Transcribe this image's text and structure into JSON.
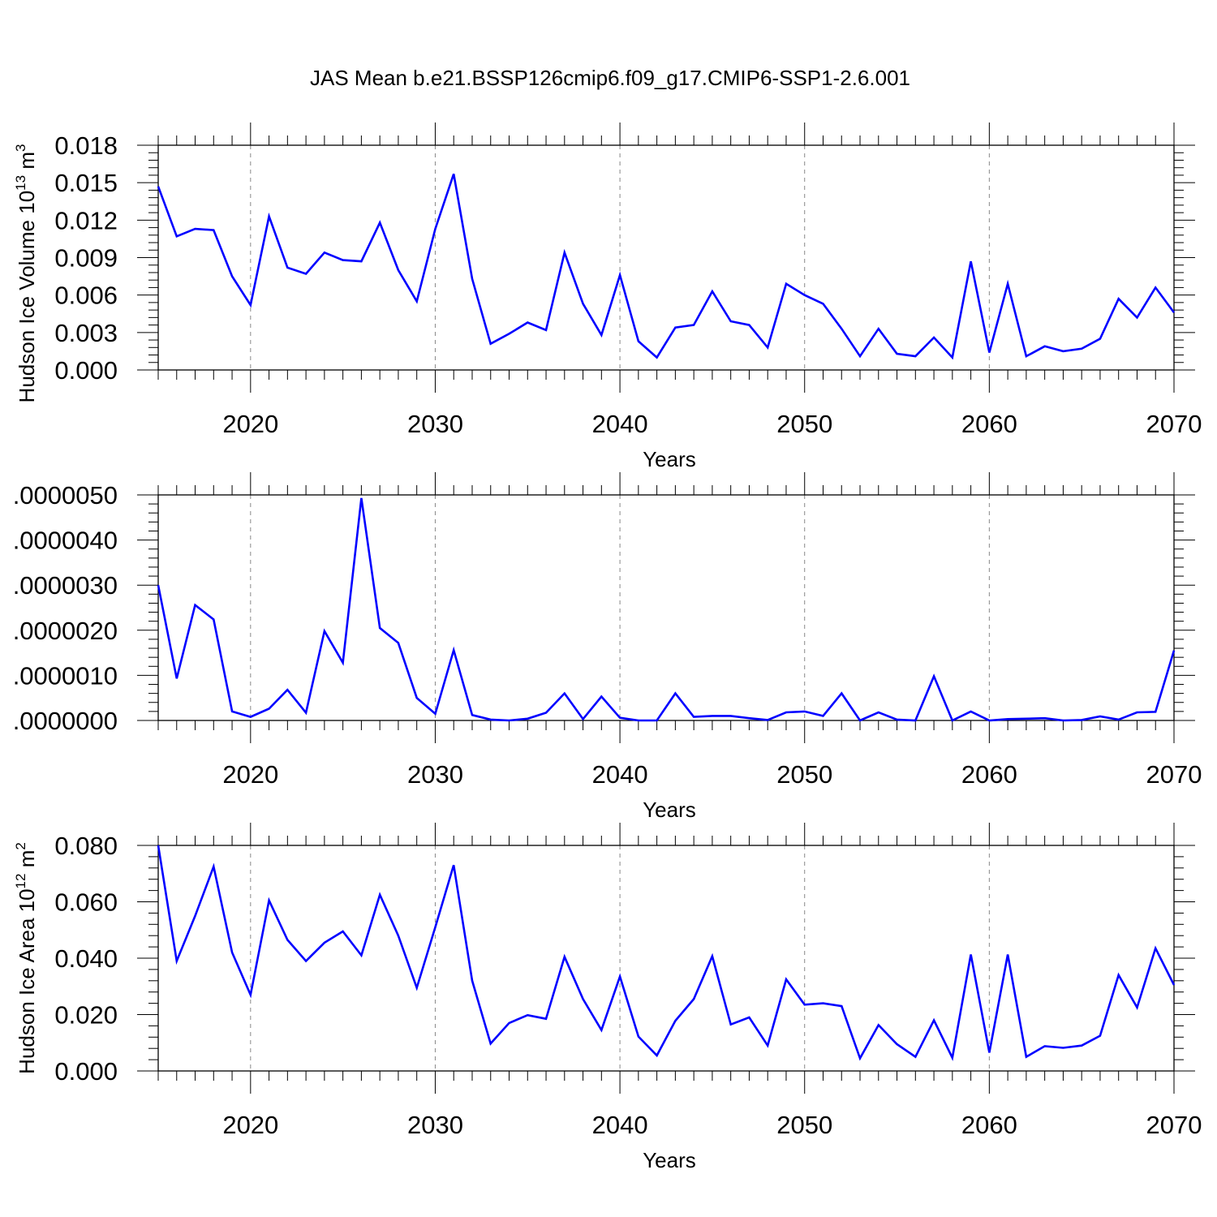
{
  "title": "JAS Mean b.e21.BSSP126cmip6.f09_g17.CMIP6-SSP1-2.6.001",
  "colors": {
    "line": "#0000ff",
    "axis": "#000000",
    "grid": "#888888",
    "background": "#ffffff"
  },
  "chart_data": [
    {
      "type": "line",
      "xlabel": "Years",
      "ylabel": {
        "text": "Hudson Ice Volume 10",
        "exponent": "13",
        "unit": " m",
        "unit_exponent": "3"
      },
      "xlim": [
        2015,
        2070
      ],
      "ylim": [
        0,
        0.018
      ],
      "x_ticks": [
        "2020",
        "2030",
        "2040",
        "2050",
        "2060",
        "2070"
      ],
      "y_ticks": [
        "0.000",
        "0.003",
        "0.006",
        "0.009",
        "0.012",
        "0.015",
        "0.018"
      ],
      "grid": "vertical dashed at major x ticks",
      "x": [
        2015,
        2016,
        2017,
        2018,
        2019,
        2020,
        2021,
        2022,
        2023,
        2024,
        2025,
        2026,
        2027,
        2028,
        2029,
        2030,
        2031,
        2032,
        2033,
        2034,
        2035,
        2036,
        2037,
        2038,
        2039,
        2040,
        2041,
        2042,
        2043,
        2044,
        2045,
        2046,
        2047,
        2048,
        2049,
        2050,
        2051,
        2052,
        2053,
        2054,
        2055,
        2056,
        2057,
        2058,
        2059,
        2060,
        2061,
        2062,
        2063,
        2064,
        2065,
        2066,
        2067,
        2068,
        2069,
        2070
      ],
      "series": [
        {
          "values": [
            0.0147,
            0.0107,
            0.0113,
            0.0112,
            0.0075,
            0.0052,
            0.0123,
            0.0082,
            0.0077,
            0.0094,
            0.0088,
            0.0087,
            0.0118,
            0.008,
            0.0055,
            0.0113,
            0.0157,
            0.0073,
            0.0021,
            0.0029,
            0.0038,
            0.0032,
            0.0094,
            0.0053,
            0.0028,
            0.0076,
            0.0023,
            0.001,
            0.0034,
            0.0036,
            0.0063,
            0.0039,
            0.0036,
            0.0018,
            0.0069,
            0.006,
            0.0053,
            0.0033,
            0.0011,
            0.0033,
            0.0013,
            0.0011,
            0.0026,
            0.001,
            0.0087,
            0.0014,
            0.0069,
            0.0011,
            0.0019,
            0.0015,
            0.0017,
            0.0025,
            0.0057,
            0.0042,
            0.0066,
            0.0046
          ]
        }
      ]
    },
    {
      "type": "line",
      "xlabel": "Years",
      "ylabel": null,
      "xlim": [
        2015,
        2070
      ],
      "ylim": [
        0,
        5e-06
      ],
      "x_ticks": [
        "2020",
        "2030",
        "2040",
        "2050",
        "2060",
        "2070"
      ],
      "y_ticks": [
        ".0000000",
        ".0000010",
        ".0000020",
        ".0000030",
        ".0000040",
        ".0000050"
      ],
      "grid": "vertical dashed at major x ticks",
      "x": [
        2015,
        2016,
        2017,
        2018,
        2019,
        2020,
        2021,
        2022,
        2023,
        2024,
        2025,
        2026,
        2027,
        2028,
        2029,
        2030,
        2031,
        2032,
        2033,
        2034,
        2035,
        2036,
        2037,
        2038,
        2039,
        2040,
        2041,
        2042,
        2043,
        2044,
        2045,
        2046,
        2047,
        2048,
        2049,
        2050,
        2051,
        2052,
        2053,
        2054,
        2055,
        2056,
        2057,
        2058,
        2059,
        2060,
        2061,
        2062,
        2063,
        2064,
        2065,
        2066,
        2067,
        2068,
        2069,
        2070
      ],
      "series": [
        {
          "values": [
            3e-06,
            9.3e-07,
            2.56e-06,
            2.24e-06,
            2e-07,
            8e-08,
            2.6e-07,
            6.8e-07,
            1.7e-07,
            1.98e-06,
            1.28e-06,
            4.93e-06,
            2.05e-06,
            1.72e-06,
            5e-07,
            1.5e-07,
            1.56e-06,
            1.2e-07,
            2e-08,
            0.0,
            4e-08,
            1.7e-07,
            6e-07,
            3e-08,
            5.3e-07,
            6e-08,
            0.0,
            0.0,
            6e-07,
            8e-08,
            1e-07,
            1e-07,
            5e-08,
            1e-08,
            1.8e-07,
            2e-07,
            1e-07,
            6e-07,
            0.0,
            1.8e-07,
            2e-08,
            0.0,
            9.8e-07,
            0.0,
            2e-07,
            0.0,
            3e-08,
            4e-08,
            5e-08,
            0.0,
            1e-08,
            9e-08,
            2e-08,
            1.8e-07,
            1.9e-07,
            1.55e-06
          ]
        }
      ]
    },
    {
      "type": "line",
      "xlabel": "Years",
      "ylabel": {
        "text": "Hudson Ice Area 10",
        "exponent": "12",
        "unit": " m",
        "unit_exponent": "2"
      },
      "xlim": [
        2015,
        2070
      ],
      "ylim": [
        0,
        0.08
      ],
      "x_ticks": [
        "2020",
        "2030",
        "2040",
        "2050",
        "2060",
        "2070"
      ],
      "y_ticks": [
        "0.000",
        "0.020",
        "0.040",
        "0.060",
        "0.080"
      ],
      "grid": "vertical dashed at major x ticks",
      "x": [
        2015,
        2016,
        2017,
        2018,
        2019,
        2020,
        2021,
        2022,
        2023,
        2024,
        2025,
        2026,
        2027,
        2028,
        2029,
        2030,
        2031,
        2032,
        2033,
        2034,
        2035,
        2036,
        2037,
        2038,
        2039,
        2040,
        2041,
        2042,
        2043,
        2044,
        2045,
        2046,
        2047,
        2048,
        2049,
        2050,
        2051,
        2052,
        2053,
        2054,
        2055,
        2056,
        2057,
        2058,
        2059,
        2060,
        2061,
        2062,
        2063,
        2064,
        2065,
        2066,
        2067,
        2068,
        2069,
        2070
      ],
      "series": [
        {
          "values": [
            0.08,
            0.039,
            0.055,
            0.0725,
            0.042,
            0.027,
            0.0605,
            0.0465,
            0.039,
            0.0455,
            0.0495,
            0.041,
            0.0625,
            0.048,
            0.0295,
            0.051,
            0.073,
            0.032,
            0.0097,
            0.017,
            0.0198,
            0.0185,
            0.0405,
            0.0255,
            0.0145,
            0.0335,
            0.0122,
            0.0055,
            0.0178,
            0.0255,
            0.0407,
            0.0165,
            0.019,
            0.009,
            0.0325,
            0.0235,
            0.024,
            0.023,
            0.0045,
            0.0163,
            0.0095,
            0.005,
            0.018,
            0.0047,
            0.0413,
            0.0065,
            0.0413,
            0.005,
            0.0088,
            0.0082,
            0.009,
            0.0125,
            0.034,
            0.0225,
            0.0435,
            0.0305
          ]
        }
      ]
    }
  ]
}
